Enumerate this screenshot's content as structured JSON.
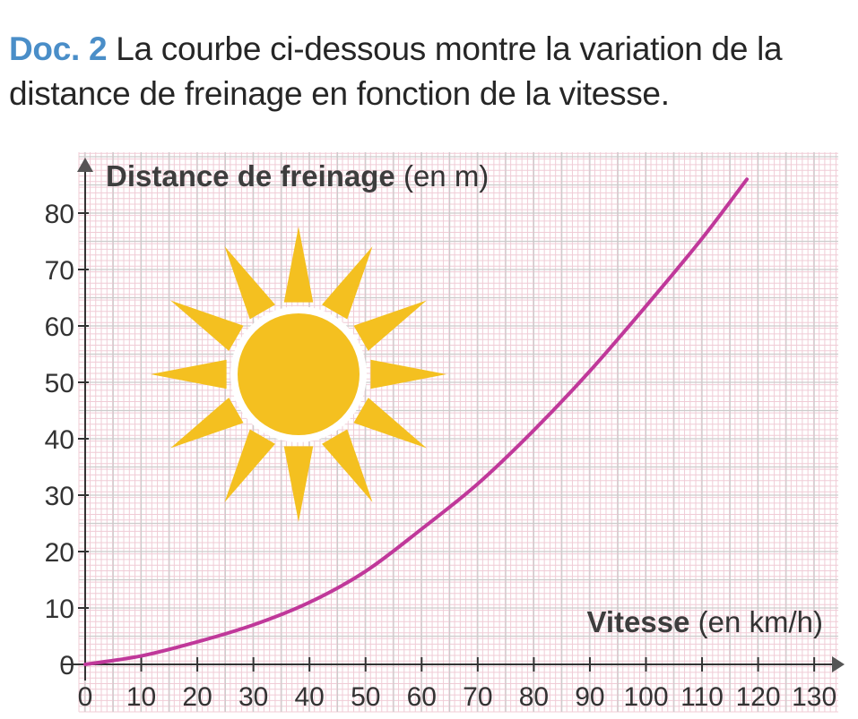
{
  "caption": {
    "doc_label": "Doc. 2",
    "text": "La courbe ci-dessous montre la variation de la distance de freinage en fonction de la vitesse."
  },
  "colors": {
    "curve": "#c0389a",
    "sun": "#f4c020",
    "grid_minor": "#f0ccd6",
    "grid_major": "#cccccc",
    "doc_label": "#4a8ec8"
  },
  "icons": [
    "sun-icon"
  ],
  "chart_data": {
    "type": "line",
    "title": "",
    "xlabel_bold": "Vitesse",
    "xlabel_unit": "(en km/h)",
    "ylabel_bold": "Distance de freinage",
    "ylabel_unit": "(en m)",
    "xlim": [
      0,
      130
    ],
    "ylim": [
      0,
      80
    ],
    "grid": true,
    "x_ticks": [
      0,
      10,
      20,
      30,
      40,
      50,
      60,
      70,
      80,
      90,
      100,
      110,
      120,
      130
    ],
    "y_ticks": [
      0,
      10,
      20,
      30,
      40,
      50,
      60,
      70,
      80
    ],
    "series": [
      {
        "x": [
          0,
          10,
          20,
          30,
          40,
          50,
          60,
          70,
          80,
          90,
          100,
          110,
          118
        ],
        "y": [
          0,
          1.5,
          4,
          7,
          11,
          16.5,
          24,
          32,
          41.5,
          52,
          63.5,
          75.5,
          86
        ]
      }
    ]
  }
}
